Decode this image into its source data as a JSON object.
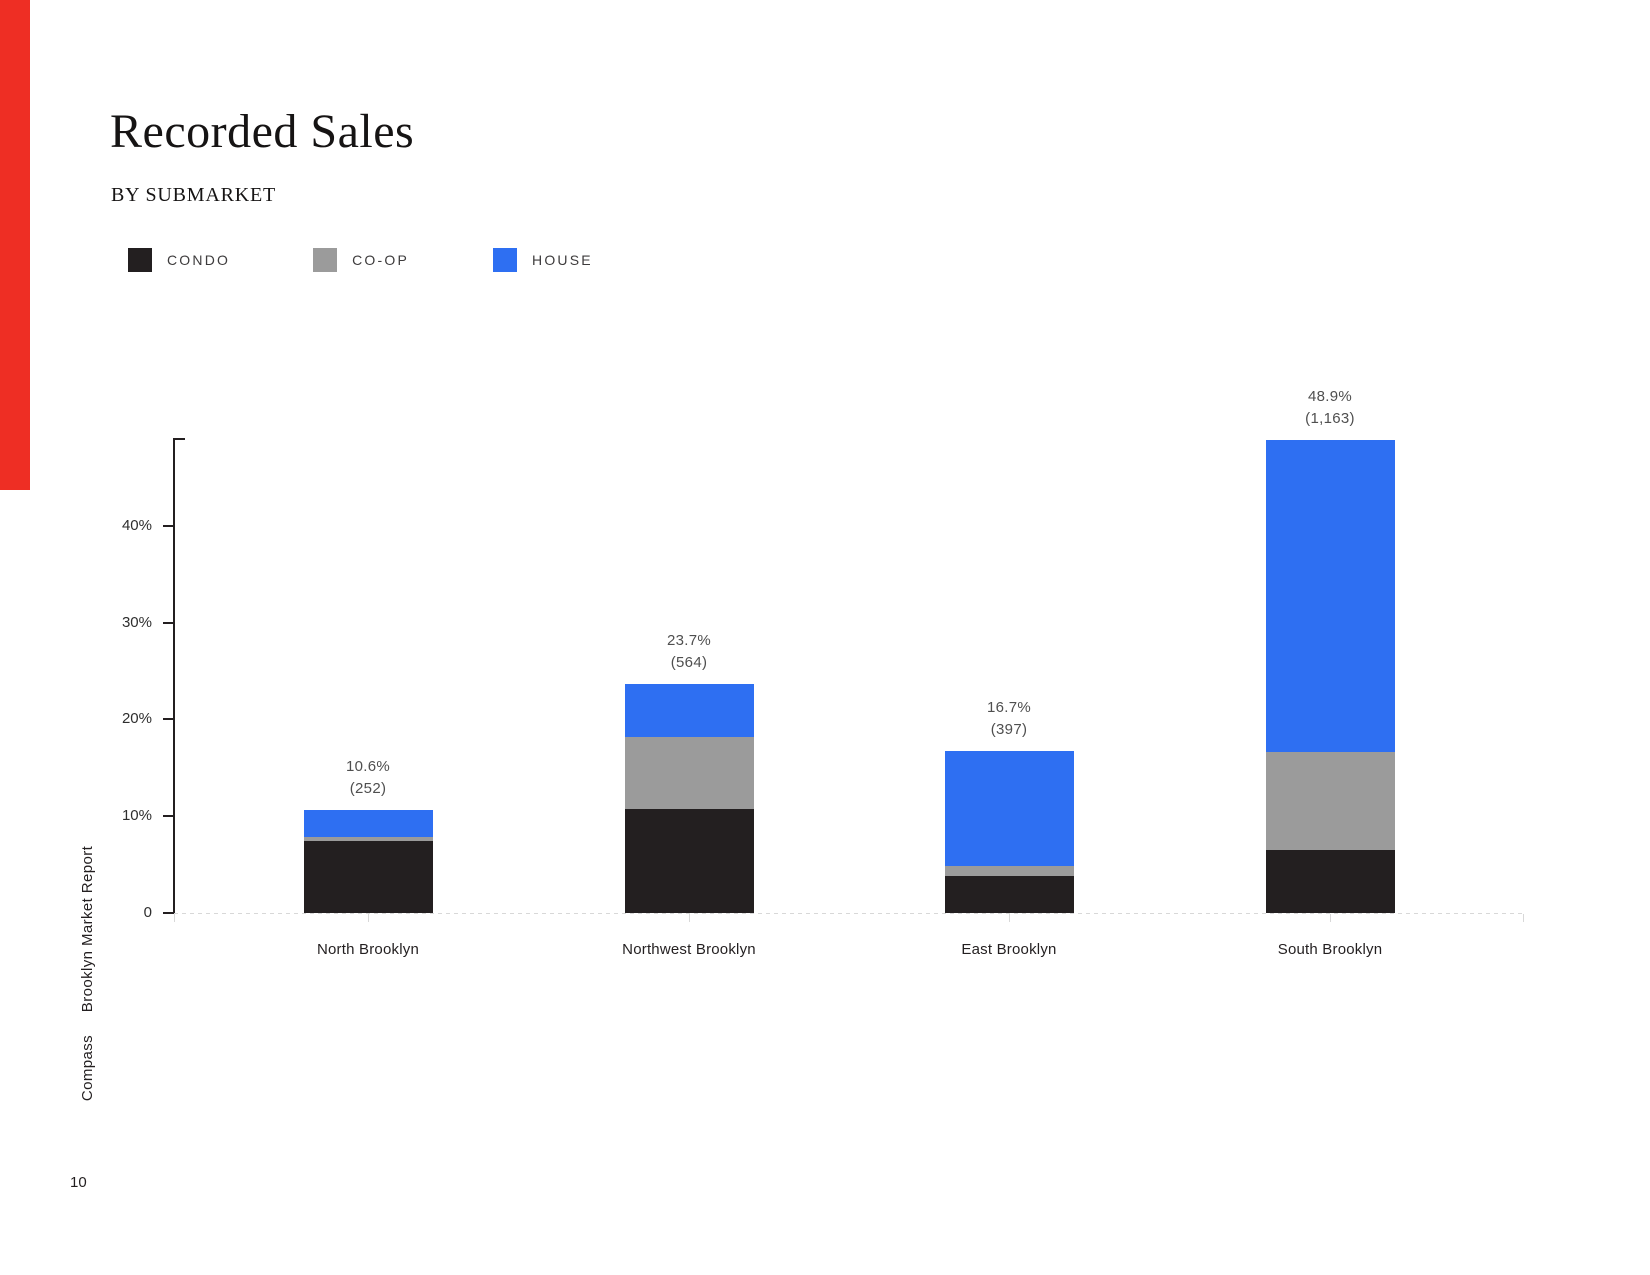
{
  "page": {
    "title": "Recorded Sales",
    "subtitle": "BY SUBMARKET",
    "page_number": "10",
    "sidebar_brand": "Compass",
    "sidebar_report": "Brooklyn Market Report",
    "accent_red": "#ee2e24"
  },
  "legend": [
    {
      "label": "CONDO",
      "color": "#231f20"
    },
    {
      "label": "CO-OP",
      "color": "#9b9b9b"
    },
    {
      "label": "HOUSE",
      "color": "#2e6ff2"
    }
  ],
  "chart_data": {
    "type": "bar",
    "stacked": true,
    "title": "Recorded Sales",
    "subtitle": "BY SUBMARKET",
    "categories": [
      "North Brooklyn",
      "Northwest Brooklyn",
      "East Brooklyn",
      "South Brooklyn"
    ],
    "series": [
      {
        "name": "CONDO",
        "color": "#231f20",
        "values": [
          7.4,
          10.7,
          3.8,
          6.5
        ]
      },
      {
        "name": "CO-OP",
        "color": "#9b9b9b",
        "values": [
          0.5,
          7.5,
          1.1,
          10.1
        ]
      },
      {
        "name": "HOUSE",
        "color": "#2e6ff2",
        "values": [
          2.7,
          5.5,
          11.8,
          32.3
        ]
      }
    ],
    "totals_percent": [
      "10.6%",
      "23.7%",
      "16.7%",
      "48.9%"
    ],
    "totals_count": [
      "(252)",
      "(564)",
      "(397)",
      "(1,163)"
    ],
    "y_ticks": [
      {
        "value": 40,
        "label": "40%"
      },
      {
        "value": 30,
        "label": "30%"
      },
      {
        "value": 20,
        "label": "20%"
      },
      {
        "value": 10,
        "label": "10%"
      },
      {
        "value": 0,
        "label": "0"
      }
    ],
    "ylim": [
      0,
      49
    ],
    "xlabel": "",
    "ylabel": "",
    "grid": "dotted baseline only",
    "legend_position": "top-left"
  }
}
